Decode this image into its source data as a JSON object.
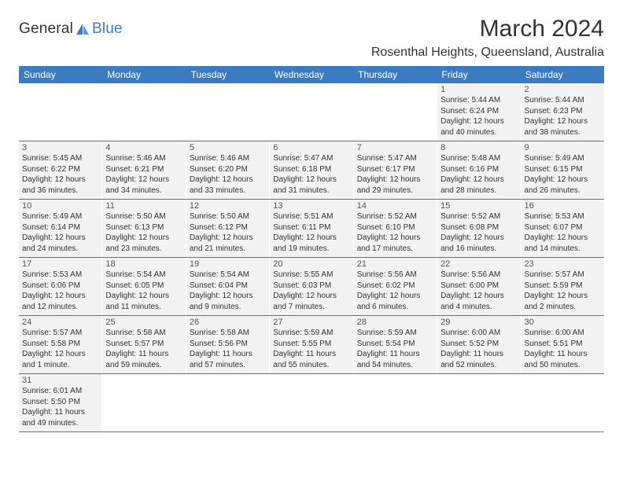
{
  "logo": {
    "text1": "General",
    "text2": "Blue"
  },
  "title": "March 2024",
  "location": "Rosenthal Heights, Queensland, Australia",
  "colors": {
    "header_bg": "#3b7bbf",
    "cell_bg": "#f2f2f2",
    "divider": "#3b7bbf",
    "text": "#333333"
  },
  "weekdays": [
    "Sunday",
    "Monday",
    "Tuesday",
    "Wednesday",
    "Thursday",
    "Friday",
    "Saturday"
  ],
  "weeks": [
    [
      null,
      null,
      null,
      null,
      null,
      {
        "n": "1",
        "sr": "5:44 AM",
        "ss": "6:24 PM",
        "dl": "12 hours and 40 minutes."
      },
      {
        "n": "2",
        "sr": "5:44 AM",
        "ss": "6:23 PM",
        "dl": "12 hours and 38 minutes."
      }
    ],
    [
      {
        "n": "3",
        "sr": "5:45 AM",
        "ss": "6:22 PM",
        "dl": "12 hours and 36 minutes."
      },
      {
        "n": "4",
        "sr": "5:46 AM",
        "ss": "6:21 PM",
        "dl": "12 hours and 34 minutes."
      },
      {
        "n": "5",
        "sr": "5:46 AM",
        "ss": "6:20 PM",
        "dl": "12 hours and 33 minutes."
      },
      {
        "n": "6",
        "sr": "5:47 AM",
        "ss": "6:18 PM",
        "dl": "12 hours and 31 minutes."
      },
      {
        "n": "7",
        "sr": "5:47 AM",
        "ss": "6:17 PM",
        "dl": "12 hours and 29 minutes."
      },
      {
        "n": "8",
        "sr": "5:48 AM",
        "ss": "6:16 PM",
        "dl": "12 hours and 28 minutes."
      },
      {
        "n": "9",
        "sr": "5:49 AM",
        "ss": "6:15 PM",
        "dl": "12 hours and 26 minutes."
      }
    ],
    [
      {
        "n": "10",
        "sr": "5:49 AM",
        "ss": "6:14 PM",
        "dl": "12 hours and 24 minutes."
      },
      {
        "n": "11",
        "sr": "5:50 AM",
        "ss": "6:13 PM",
        "dl": "12 hours and 23 minutes."
      },
      {
        "n": "12",
        "sr": "5:50 AM",
        "ss": "6:12 PM",
        "dl": "12 hours and 21 minutes."
      },
      {
        "n": "13",
        "sr": "5:51 AM",
        "ss": "6:11 PM",
        "dl": "12 hours and 19 minutes."
      },
      {
        "n": "14",
        "sr": "5:52 AM",
        "ss": "6:10 PM",
        "dl": "12 hours and 17 minutes."
      },
      {
        "n": "15",
        "sr": "5:52 AM",
        "ss": "6:08 PM",
        "dl": "12 hours and 16 minutes."
      },
      {
        "n": "16",
        "sr": "5:53 AM",
        "ss": "6:07 PM",
        "dl": "12 hours and 14 minutes."
      }
    ],
    [
      {
        "n": "17",
        "sr": "5:53 AM",
        "ss": "6:06 PM",
        "dl": "12 hours and 12 minutes."
      },
      {
        "n": "18",
        "sr": "5:54 AM",
        "ss": "6:05 PM",
        "dl": "12 hours and 11 minutes."
      },
      {
        "n": "19",
        "sr": "5:54 AM",
        "ss": "6:04 PM",
        "dl": "12 hours and 9 minutes."
      },
      {
        "n": "20",
        "sr": "5:55 AM",
        "ss": "6:03 PM",
        "dl": "12 hours and 7 minutes."
      },
      {
        "n": "21",
        "sr": "5:56 AM",
        "ss": "6:02 PM",
        "dl": "12 hours and 6 minutes."
      },
      {
        "n": "22",
        "sr": "5:56 AM",
        "ss": "6:00 PM",
        "dl": "12 hours and 4 minutes."
      },
      {
        "n": "23",
        "sr": "5:57 AM",
        "ss": "5:59 PM",
        "dl": "12 hours and 2 minutes."
      }
    ],
    [
      {
        "n": "24",
        "sr": "5:57 AM",
        "ss": "5:58 PM",
        "dl": "12 hours and 1 minute."
      },
      {
        "n": "25",
        "sr": "5:58 AM",
        "ss": "5:57 PM",
        "dl": "11 hours and 59 minutes."
      },
      {
        "n": "26",
        "sr": "5:58 AM",
        "ss": "5:56 PM",
        "dl": "11 hours and 57 minutes."
      },
      {
        "n": "27",
        "sr": "5:59 AM",
        "ss": "5:55 PM",
        "dl": "11 hours and 55 minutes."
      },
      {
        "n": "28",
        "sr": "5:59 AM",
        "ss": "5:54 PM",
        "dl": "11 hours and 54 minutes."
      },
      {
        "n": "29",
        "sr": "6:00 AM",
        "ss": "5:52 PM",
        "dl": "11 hours and 52 minutes."
      },
      {
        "n": "30",
        "sr": "6:00 AM",
        "ss": "5:51 PM",
        "dl": "11 hours and 50 minutes."
      }
    ],
    [
      {
        "n": "31",
        "sr": "6:01 AM",
        "ss": "5:50 PM",
        "dl": "11 hours and 49 minutes."
      },
      null,
      null,
      null,
      null,
      null,
      null
    ]
  ],
  "labels": {
    "sunrise": "Sunrise: ",
    "sunset": "Sunset: ",
    "daylight": "Daylight: "
  }
}
